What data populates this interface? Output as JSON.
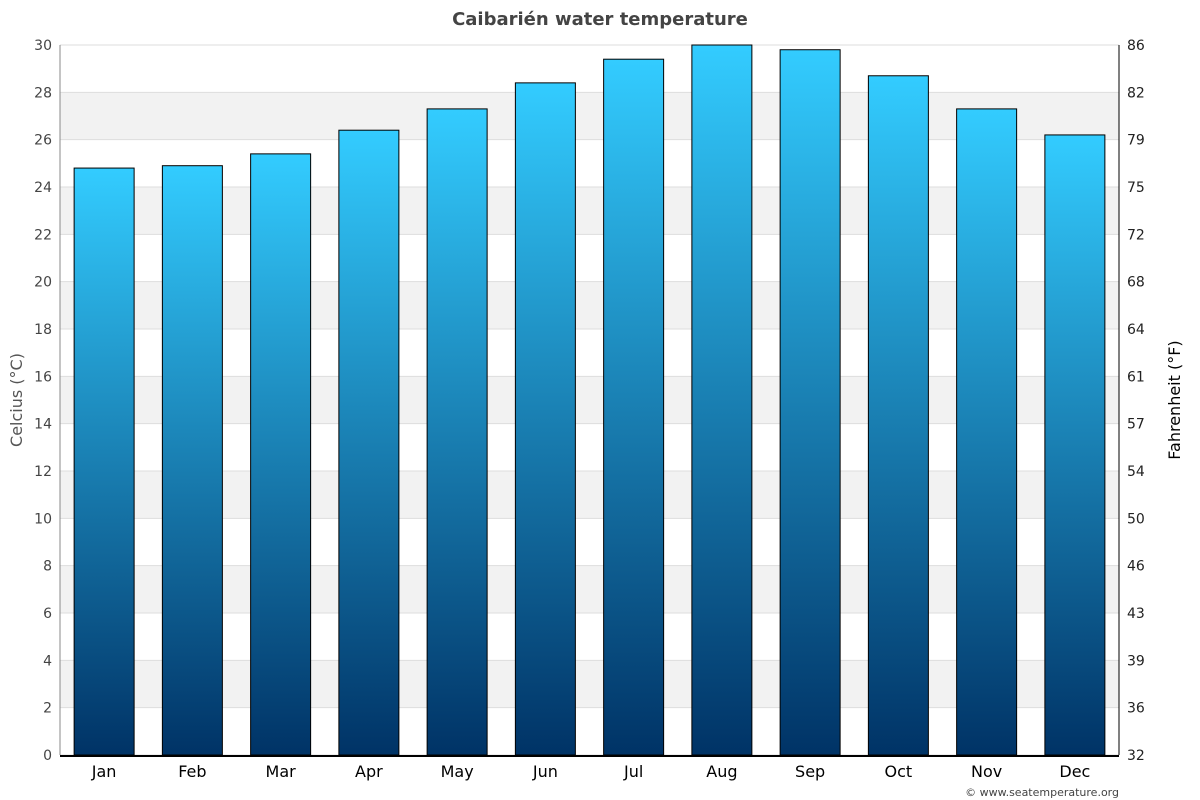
{
  "chart_data": {
    "type": "bar",
    "title": "Caibarién water temperature",
    "categories": [
      "Jan",
      "Feb",
      "Mar",
      "Apr",
      "May",
      "Jun",
      "Jul",
      "Aug",
      "Sep",
      "Oct",
      "Nov",
      "Dec"
    ],
    "values": [
      24.8,
      24.9,
      25.4,
      26.4,
      27.3,
      28.4,
      29.4,
      30.0,
      29.8,
      28.7,
      27.3,
      26.2
    ],
    "ylabel": "Celcius (°C)",
    "y2label": "Fahrenheit (°F)",
    "ylim": [
      0,
      30
    ],
    "yticks": [
      "0",
      "2",
      "4",
      "6",
      "8",
      "10",
      "12",
      "14",
      "16",
      "18",
      "20",
      "22",
      "24",
      "26",
      "28",
      "30"
    ],
    "y2ticks": [
      "32",
      "36",
      "39",
      "43",
      "46",
      "50",
      "54",
      "57",
      "61",
      "64",
      "68",
      "72",
      "75",
      "79",
      "82",
      "86"
    ],
    "grid": true,
    "colors": {
      "bar_top": "#33ccff",
      "bar_bottom": "#003366",
      "band": "#f2f2f2"
    }
  },
  "credit": "© www.seatemperature.org"
}
